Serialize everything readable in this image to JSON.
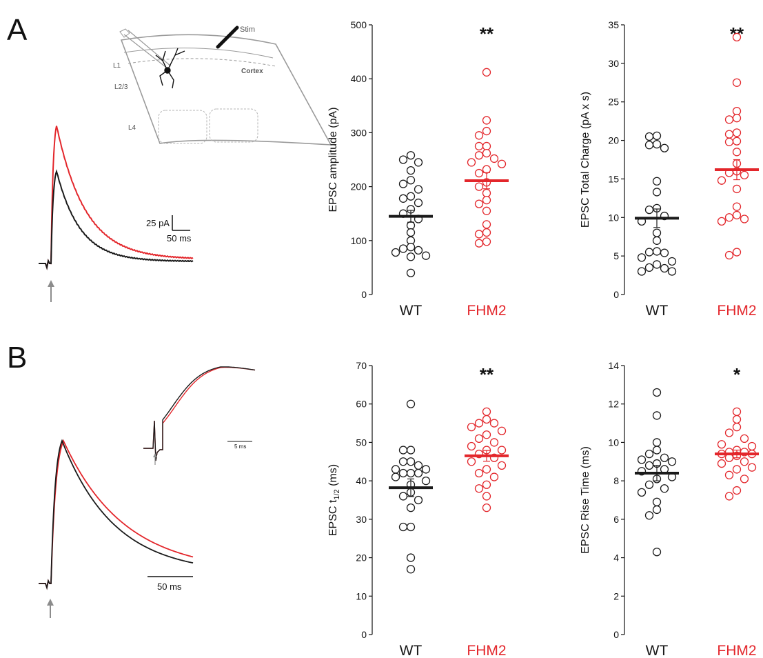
{
  "panel_labels": {
    "a": "A",
    "b": "B"
  },
  "colors": {
    "wt": "#1a1a1a",
    "fhm2": "#e3262b",
    "gray": "#8c8c8c",
    "schematic": "#9a9a9a"
  },
  "schematic": {
    "stim": "Stim",
    "cortex": "Cortex",
    "l1": "L1",
    "l23": "L2/3",
    "l4": "L4"
  },
  "scalebars": {
    "a_amp": "25 pA",
    "a_time": "50 ms",
    "b_time": "50 ms",
    "b_inset_time": "5 ms"
  },
  "chart_data": [
    {
      "type": "scatter",
      "panel": "A",
      "categories": [
        "WT",
        "FHM2"
      ],
      "ylabel": "EPSC amplitude (pA)",
      "ylim": [
        0,
        500
      ],
      "yticks": [
        0,
        100,
        200,
        300,
        400,
        500
      ],
      "significance": "**",
      "series": [
        {
          "name": "WT",
          "mean": 145,
          "sem": 11,
          "values": [
            258,
            250,
            245,
            230,
            212,
            205,
            195,
            182,
            178,
            170,
            158,
            150,
            140,
            128,
            115,
            100,
            88,
            85,
            82,
            78,
            72,
            70,
            40
          ]
        },
        {
          "name": "FHM2",
          "mean": 211,
          "sem": 15,
          "values": [
            412,
            323,
            303,
            295,
            275,
            275,
            262,
            258,
            252,
            245,
            242,
            232,
            225,
            208,
            200,
            188,
            175,
            168,
            155,
            130,
            115,
            112,
            98,
            95
          ]
        }
      ]
    },
    {
      "type": "scatter",
      "panel": "A",
      "categories": [
        "WT",
        "FHM2"
      ],
      "ylabel": "EPSC Total Charge (pA x s)",
      "ylim": [
        0,
        35
      ],
      "yticks": [
        0,
        5,
        10,
        15,
        20,
        25,
        30,
        35
      ],
      "significance": "**",
      "series": [
        {
          "name": "WT",
          "mean": 9.9,
          "sem": 1.2,
          "values": [
            20.6,
            20.5,
            19.5,
            19.4,
            19.0,
            14.7,
            13.3,
            11.2,
            11.0,
            10.2,
            9.5,
            8.0,
            7.0,
            5.6,
            5.5,
            5.4,
            4.8,
            4.3,
            3.9,
            3.5,
            3.4,
            3.0,
            3.0
          ]
        },
        {
          "name": "FHM2",
          "mean": 16.2,
          "sem": 1.3,
          "values": [
            33.4,
            27.5,
            23.8,
            22.9,
            22.7,
            21.0,
            20.8,
            19.9,
            19.8,
            18.5,
            17.0,
            16.0,
            15.8,
            15.5,
            14.8,
            13.7,
            11.4,
            10.3,
            10.0,
            9.8,
            9.5,
            5.5,
            5.1
          ]
        }
      ]
    },
    {
      "type": "scatter",
      "panel": "B",
      "categories": [
        "WT",
        "FHM2"
      ],
      "ylabel": "EPSC t1/2 (ms)",
      "ylabel_main": "EPSC t",
      "ylabel_sub": "1/2",
      "ylabel_unit": " (ms)",
      "ylim": [
        0,
        70
      ],
      "yticks": [
        0,
        10,
        20,
        30,
        40,
        50,
        60,
        70
      ],
      "significance": "**",
      "series": [
        {
          "name": "WT",
          "mean": 38.2,
          "sem": 2.3,
          "values": [
            60,
            48,
            48,
            45,
            45,
            44,
            43,
            43,
            42,
            42,
            42,
            41,
            40,
            39,
            37,
            36,
            35,
            33,
            28,
            28,
            20,
            17
          ]
        },
        {
          "name": "FHM2",
          "mean": 46.5,
          "sem": 1.4,
          "values": [
            58,
            56,
            55,
            55,
            54,
            53,
            52,
            51,
            50,
            49,
            48,
            48,
            47,
            46,
            45,
            44,
            43,
            42,
            41,
            39,
            38,
            36,
            33
          ]
        }
      ]
    },
    {
      "type": "scatter",
      "panel": "B",
      "categories": [
        "WT",
        "FHM2"
      ],
      "ylabel": "EPSC Rise Time (ms)",
      "ylim": [
        0,
        14
      ],
      "yticks": [
        0,
        2,
        4,
        6,
        8,
        10,
        12,
        14
      ],
      "significance": "*",
      "series": [
        {
          "name": "WT",
          "mean": 8.4,
          "sem": 0.4,
          "values": [
            12.6,
            11.4,
            10.0,
            9.6,
            9.4,
            9.2,
            9.1,
            9.0,
            8.9,
            8.8,
            8.6,
            8.5,
            8.2,
            8.1,
            7.8,
            7.6,
            7.4,
            6.9,
            6.5,
            6.2,
            4.3
          ]
        },
        {
          "name": "FHM2",
          "mean": 9.4,
          "sem": 0.2,
          "values": [
            11.6,
            11.2,
            10.8,
            10.5,
            10.2,
            9.9,
            9.8,
            9.6,
            9.5,
            9.5,
            9.4,
            9.4,
            9.3,
            9.2,
            9.0,
            8.9,
            8.7,
            8.6,
            8.3,
            8.1,
            7.5,
            7.2
          ]
        }
      ]
    }
  ]
}
